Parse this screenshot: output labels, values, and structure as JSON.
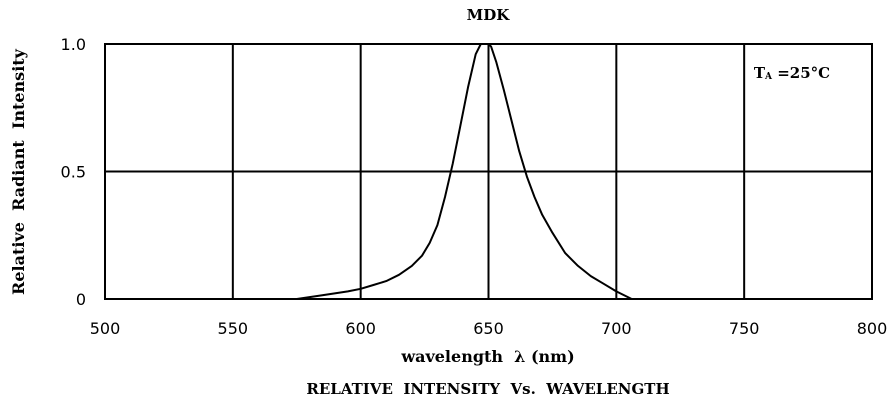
{
  "chart_data": {
    "type": "line",
    "title": "MDK",
    "xlabel": "wavelength  λ (nm)",
    "ylabel": "Relative  Radiant  Intensity",
    "caption": "RELATIVE  INTENSITY  Vs.  WAVELENGTH",
    "annotation": {
      "main": "T",
      "sub": "A",
      "rest": " =25°C"
    },
    "xlim": [
      500,
      800
    ],
    "ylim": [
      0,
      1.0
    ],
    "xticks": [
      500,
      550,
      600,
      650,
      700,
      750,
      800
    ],
    "xtick_labels": [
      "500",
      "550",
      "600",
      "650",
      "700",
      "750",
      "800"
    ],
    "yticks": [
      0,
      0.5,
      1.0
    ],
    "ytick_labels": [
      "0",
      "0.5",
      "1.0"
    ],
    "grid": true,
    "series": [
      {
        "x": [
          575,
          585,
          595,
          600,
          605,
          610,
          615,
          620,
          624,
          627,
          630,
          633,
          636,
          639,
          642,
          645,
          647,
          648,
          649,
          650,
          651,
          653,
          656,
          659,
          662,
          665,
          668,
          671,
          675,
          680,
          685,
          690,
          695,
          700,
          706
        ],
        "y": [
          0.0,
          0.015,
          0.03,
          0.04,
          0.055,
          0.07,
          0.095,
          0.13,
          0.17,
          0.22,
          0.29,
          0.4,
          0.53,
          0.68,
          0.83,
          0.96,
          1.0,
          1.0,
          1.0,
          1.0,
          0.99,
          0.93,
          0.82,
          0.7,
          0.58,
          0.48,
          0.4,
          0.33,
          0.26,
          0.18,
          0.13,
          0.09,
          0.06,
          0.03,
          0.0
        ]
      }
    ]
  }
}
